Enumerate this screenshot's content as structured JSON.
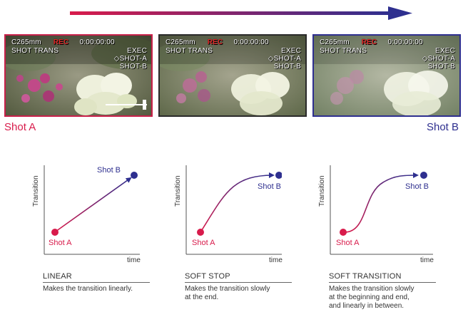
{
  "osd": {
    "line1_left": "C265mm",
    "rec": "REC",
    "line1_right": "0:00:00:00",
    "line2_left": "SHOT TRANS",
    "line2_right": "EXEC",
    "shot_a": "SHOT-A",
    "shot_b": "SHOT-B"
  },
  "labels": {
    "shot_a": "Shot A",
    "shot_b": "Shot B"
  },
  "colors": {
    "shot_a": "#d81b4b",
    "shot_b": "#2e2f8f",
    "arrow_start": "#d81b4b",
    "arrow_end": "#2e2f8f"
  },
  "graphs": [
    {
      "ylabel": "Transition",
      "xlabel": "time",
      "start_label": "Shot A",
      "end_label": "Shot B",
      "title": "LINEAR",
      "desc": [
        "Makes the transition linearly."
      ]
    },
    {
      "ylabel": "Transition",
      "xlabel": "time",
      "start_label": "Shot A",
      "end_label": "Shot B",
      "title": "SOFT STOP",
      "desc": [
        "Makes the transition slowly",
        "at the end."
      ]
    },
    {
      "ylabel": "Transition",
      "xlabel": "time",
      "start_label": "Shot A",
      "end_label": "Shot B",
      "title": "SOFT TRANSITION",
      "desc": [
        "Makes the transition slowly",
        "at the beginning and end,",
        "and linearly in between."
      ]
    }
  ]
}
